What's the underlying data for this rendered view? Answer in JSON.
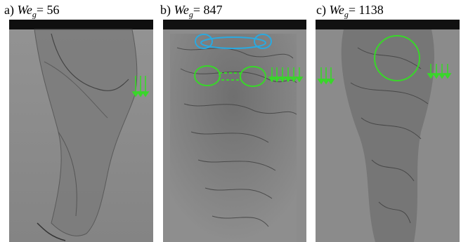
{
  "panels": [
    {
      "prefix": "a)",
      "symbol": "We",
      "subscript": "g",
      "relation": "= 56"
    },
    {
      "prefix": "b)",
      "symbol": "We",
      "subscript": "g",
      "relation": "= 847"
    },
    {
      "prefix": "c)",
      "symbol": "We",
      "subscript": "g",
      "relation": "= 1138"
    }
  ],
  "colors": {
    "background_gray": "#8a8a8a",
    "nozzle_black": "#111111",
    "annotation_green": "#39d62a",
    "annotation_blue": "#2aa9e0"
  },
  "icons": [
    "down-arrow-icon"
  ]
}
